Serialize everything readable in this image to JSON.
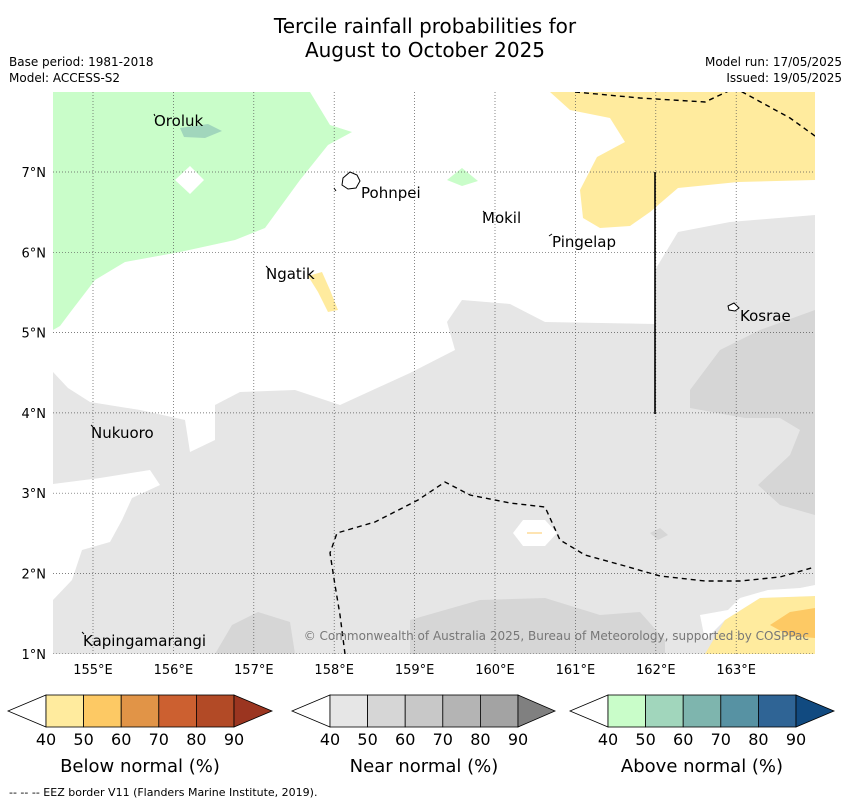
{
  "title_line1": "Tercile rainfall probabilities for",
  "title_line2": "August to October 2025",
  "meta_left": [
    "Base period: 1981-2018",
    "Model: ACCESS-S2"
  ],
  "meta_right": [
    "Model run: 17/05/2025",
    "Issued: 19/05/2025"
  ],
  "lon_labels": [
    "155°E",
    "156°E",
    "157°E",
    "158°E",
    "159°E",
    "160°E",
    "161°E",
    "162°E",
    "163°E"
  ],
  "lat_labels": [
    "7°N",
    "6°N",
    "5°N",
    "4°N",
    "3°N",
    "2°N",
    "1°N"
  ],
  "places": {
    "oroluk": "Oroluk",
    "pohnpei": "Pohnpei",
    "mokil": "Mokil",
    "pingelap": "Pingelap",
    "ngatik": "Ngatik",
    "kosrae": "Kosrae",
    "nukuoro": "Nukuoro",
    "kapingamarangi": "Kapingamarangi"
  },
  "copyright": "© Commonwealth of Australia 2025, Bureau of Meteorology, supported by COSPPac",
  "colorbars": [
    {
      "title": "Below normal (%)",
      "ticks": [
        "40",
        "50",
        "60",
        "70",
        "80",
        "90"
      ],
      "colors": [
        "#ffffff",
        "#ffeb9e",
        "#fdc964",
        "#e19447",
        "#cc6030",
        "#b24a26",
        "#9b3520"
      ]
    },
    {
      "title": "Near normal (%)",
      "ticks": [
        "40",
        "50",
        "60",
        "70",
        "80",
        "90"
      ],
      "colors": [
        "#ffffff",
        "#e6e6e6",
        "#d6d6d6",
        "#c8c8c8",
        "#b4b4b4",
        "#a3a3a3",
        "#808080"
      ]
    },
    {
      "title": "Above normal (%)",
      "ticks": [
        "40",
        "50",
        "60",
        "70",
        "80",
        "90"
      ],
      "colors": [
        "#ffffff",
        "#c9fdc9",
        "#a1d6bc",
        "#7eb5ae",
        "#5792a3",
        "#2f6495",
        "#114a80"
      ]
    }
  ],
  "footer": "--  --  -- EEZ border V11 (Flanders Marine Institute, 2019)."
}
